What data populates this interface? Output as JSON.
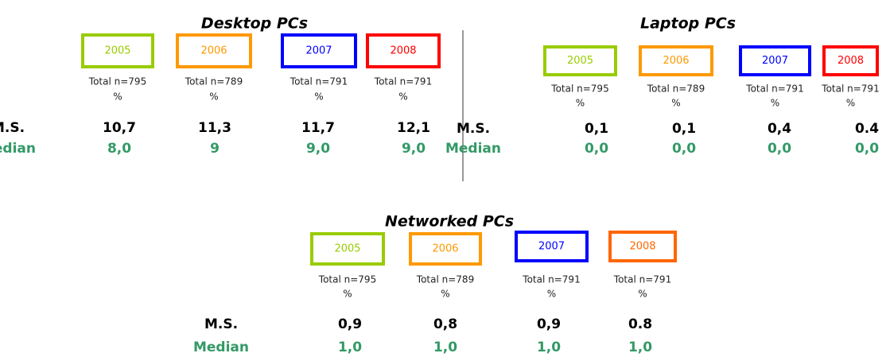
{
  "panels": [
    {
      "title": "Desktop PCs",
      "columns": [
        {
          "year": "2005",
          "color": "#99cc00",
          "total": "Total n=795",
          "unit": "%"
        },
        {
          "year": "2006",
          "color": "#ff9900",
          "total": "Total n=789",
          "unit": "%"
        },
        {
          "year": "2007",
          "color": "#0000ff",
          "total": "Total n=791",
          "unit": "%"
        },
        {
          "year": "2008",
          "color": "#ff0000",
          "total": "Total n=791",
          "unit": "%"
        }
      ],
      "rows": [
        {
          "label": "M.S.",
          "values": [
            "10,7",
            "11,3",
            "11,7",
            "12,1"
          ]
        },
        {
          "label": "Median",
          "values": [
            "8,0",
            "9",
            "9,0",
            "9,0"
          ]
        }
      ]
    },
    {
      "title": "Laptop PCs",
      "columns": [
        {
          "year": "2005",
          "color": "#99cc00",
          "total": "Total n=795",
          "unit": "%"
        },
        {
          "year": "2006",
          "color": "#ff9900",
          "total": "Total n=789",
          "unit": "%"
        },
        {
          "year": "2007",
          "color": "#0000ff",
          "total": "Total n=791",
          "unit": "%"
        },
        {
          "year": "2008",
          "color": "#ff0000",
          "total": "Total n=791",
          "unit": "%"
        }
      ],
      "rows": [
        {
          "label": "M.S.",
          "values": [
            "0,1",
            "0,1",
            "0,4",
            "0.4"
          ]
        },
        {
          "label": "Median",
          "values": [
            "0,0",
            "0,0",
            "0,0",
            "0,0"
          ]
        }
      ]
    },
    {
      "title": "Networked PCs",
      "columns": [
        {
          "year": "2005",
          "color": "#99cc00",
          "total": "Total n=795",
          "unit": "%"
        },
        {
          "year": "2006",
          "color": "#ff9900",
          "total": "Total n=789",
          "unit": "%"
        },
        {
          "year": "2007",
          "color": "#0000ff",
          "total": "Total n=791",
          "unit": "%"
        },
        {
          "year": "2008",
          "color": "#ff6600",
          "total": "Total n=791",
          "unit": "%"
        }
      ],
      "rows": [
        {
          "label": "M.S.",
          "values": [
            "0,9",
            "0,8",
            "0,9",
            "0.8"
          ]
        },
        {
          "label": "Median",
          "values": [
            "1,0",
            "1,0",
            "1,0",
            "1,0"
          ]
        }
      ]
    }
  ]
}
